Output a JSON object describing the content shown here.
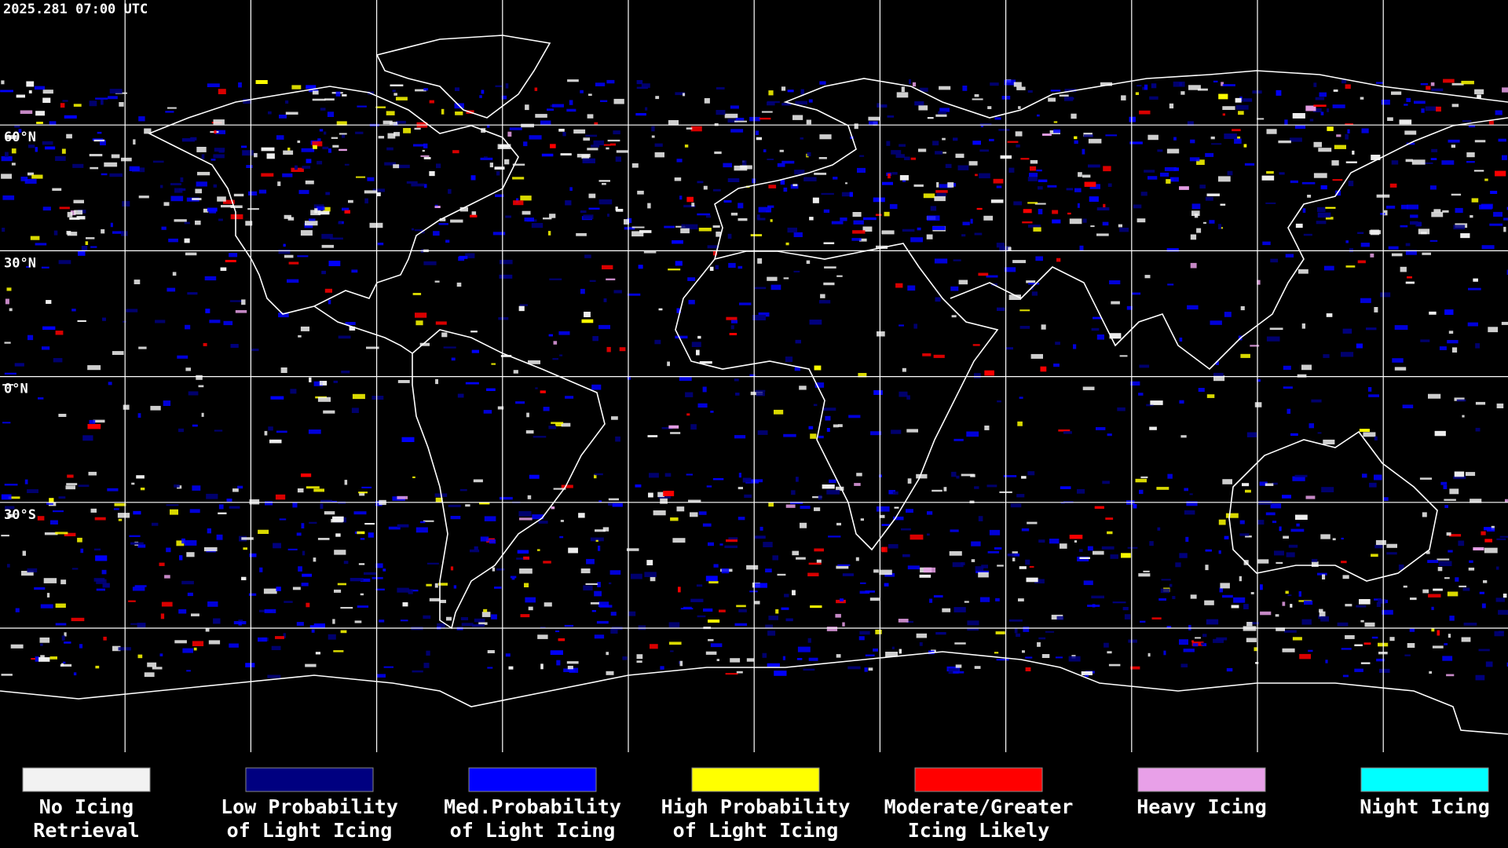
{
  "header": {
    "timestamp": "2025.281 07:00 UTC"
  },
  "map": {
    "latitude_labels": [
      "60°N",
      "30°N",
      "0°N",
      "30°S"
    ]
  },
  "legend": {
    "items": [
      {
        "lines": [
          "No Icing",
          "Retrieval"
        ],
        "color": "#f2f2f2"
      },
      {
        "lines": [
          "Low Probability",
          "of Light Icing"
        ],
        "color": "#000080"
      },
      {
        "lines": [
          "Med.Probability",
          "of Light Icing"
        ],
        "color": "#0000ff"
      },
      {
        "lines": [
          "High Probability",
          "of Light Icing"
        ],
        "color": "#ffff00"
      },
      {
        "lines": [
          "Moderate/Greater",
          "Icing Likely"
        ],
        "color": "#ff0000"
      },
      {
        "lines": [
          "Heavy Icing"
        ],
        "color": "#e8a0e8"
      },
      {
        "lines": [
          "Night Icing"
        ],
        "color": "#00ffff"
      }
    ]
  }
}
